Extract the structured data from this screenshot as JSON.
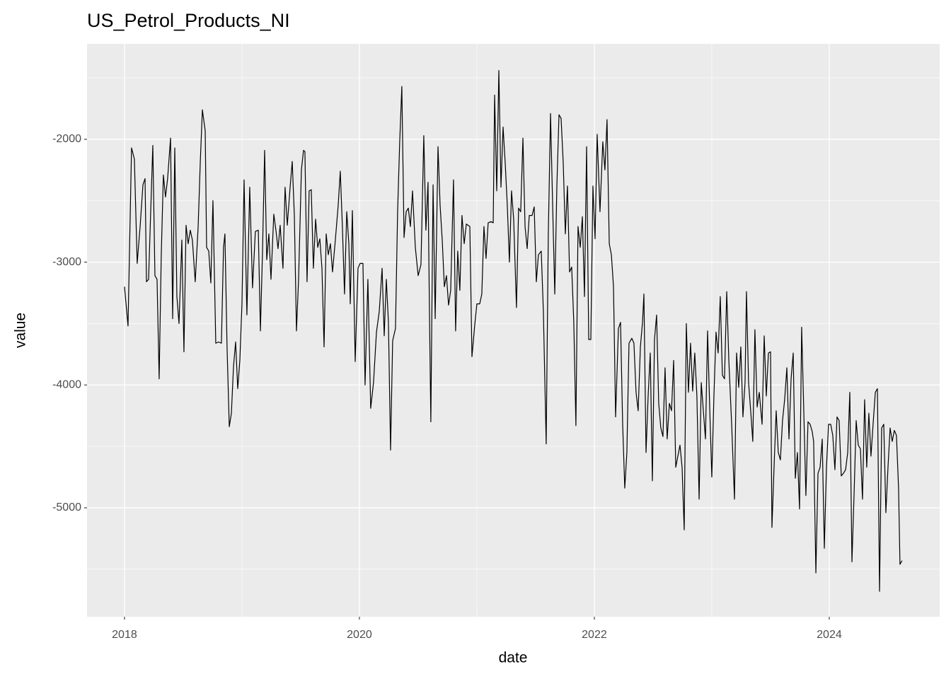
{
  "chart_data": {
    "type": "line",
    "title": "US_Petrol_Products_NI",
    "xlabel": "date",
    "ylabel": "value",
    "color": "#000000",
    "grid": true,
    "xlim": [
      2017.681,
      2024.94
    ],
    "xticks": [
      2018,
      2020,
      2022,
      2024
    ],
    "ylim": [
      -5887,
      -1223
    ],
    "yticks": [
      -5000,
      -4000,
      -3000,
      -2000
    ],
    "x": [
      2018.0,
      2018.03,
      2018.06,
      2018.084,
      2018.108,
      2018.133,
      2018.157,
      2018.175,
      2018.187,
      2018.205,
      2018.223,
      2018.241,
      2018.259,
      2018.277,
      2018.295,
      2018.313,
      2018.331,
      2018.349,
      2018.367,
      2018.392,
      2018.41,
      2018.428,
      2018.446,
      2018.464,
      2018.488,
      2018.506,
      2018.524,
      2018.542,
      2018.56,
      2018.578,
      2018.602,
      2018.627,
      2018.645,
      2018.663,
      2018.687,
      2018.699,
      2018.717,
      2018.735,
      2018.753,
      2018.777,
      2018.801,
      2018.825,
      2018.843,
      2018.855,
      2018.873,
      2018.892,
      2018.91,
      2018.928,
      2018.946,
      2018.964,
      2018.982,
      2019.0,
      2019.018,
      2019.042,
      2019.066,
      2019.09,
      2019.114,
      2019.139,
      2019.157,
      2019.175,
      2019.193,
      2019.211,
      2019.229,
      2019.247,
      2019.271,
      2019.289,
      2019.307,
      2019.325,
      2019.349,
      2019.367,
      2019.386,
      2019.41,
      2019.428,
      2019.446,
      2019.464,
      2019.482,
      2019.506,
      2019.524,
      2019.536,
      2019.554,
      2019.572,
      2019.59,
      2019.608,
      2019.627,
      2019.645,
      2019.663,
      2019.681,
      2019.699,
      2019.717,
      2019.735,
      2019.753,
      2019.771,
      2019.795,
      2019.819,
      2019.837,
      2019.855,
      2019.873,
      2019.892,
      2019.91,
      2019.922,
      2019.94,
      2019.964,
      2019.988,
      2020.006,
      2020.03,
      2020.048,
      2020.072,
      2020.096,
      2020.12,
      2020.145,
      2020.169,
      2020.193,
      2020.211,
      2020.229,
      2020.247,
      2020.265,
      2020.283,
      2020.307,
      2020.325,
      2020.343,
      2020.361,
      2020.38,
      2020.398,
      2020.416,
      2020.434,
      2020.452,
      2020.476,
      2020.5,
      2020.524,
      2020.548,
      2020.566,
      2020.584,
      2020.596,
      2020.608,
      2020.627,
      2020.645,
      2020.669,
      2020.687,
      2020.705,
      2020.723,
      2020.741,
      2020.759,
      2020.777,
      2020.801,
      2020.819,
      2020.837,
      2020.855,
      2020.873,
      2020.892,
      2020.91,
      2020.94,
      2020.958,
      2020.982,
      2021.0,
      2021.024,
      2021.042,
      2021.06,
      2021.078,
      2021.096,
      2021.12,
      2021.139,
      2021.151,
      2021.169,
      2021.187,
      2021.205,
      2021.223,
      2021.241,
      2021.259,
      2021.277,
      2021.295,
      2021.313,
      2021.337,
      2021.355,
      2021.373,
      2021.392,
      2021.41,
      2021.428,
      2021.446,
      2021.47,
      2021.488,
      2021.506,
      2021.524,
      2021.548,
      2021.566,
      2021.59,
      2021.608,
      2021.627,
      2021.645,
      2021.663,
      2021.681,
      2021.699,
      2021.717,
      2021.735,
      2021.753,
      2021.771,
      2021.789,
      2021.807,
      2021.825,
      2021.843,
      2021.861,
      2021.88,
      2021.898,
      2021.916,
      2021.934,
      2021.952,
      2021.97,
      2021.988,
      2022.006,
      2022.024,
      2022.048,
      2022.072,
      2022.09,
      2022.108,
      2022.127,
      2022.145,
      2022.163,
      2022.181,
      2022.205,
      2022.223,
      2022.241,
      2022.259,
      2022.277,
      2022.295,
      2022.319,
      2022.337,
      2022.355,
      2022.373,
      2022.392,
      2022.41,
      2022.422,
      2022.44,
      2022.458,
      2022.476,
      2022.494,
      2022.512,
      2022.53,
      2022.548,
      2022.566,
      2022.584,
      2022.602,
      2022.62,
      2022.639,
      2022.657,
      2022.675,
      2022.693,
      2022.711,
      2022.729,
      2022.747,
      2022.765,
      2022.783,
      2022.801,
      2022.819,
      2022.837,
      2022.855,
      2022.873,
      2022.892,
      2022.91,
      2022.928,
      2022.946,
      2022.964,
      2022.982,
      2023.0,
      2023.018,
      2023.036,
      2023.054,
      2023.072,
      2023.09,
      2023.108,
      2023.127,
      2023.145,
      2023.169,
      2023.193,
      2023.211,
      2023.229,
      2023.247,
      2023.265,
      2023.283,
      2023.295,
      2023.313,
      2023.331,
      2023.349,
      2023.367,
      2023.386,
      2023.404,
      2023.428,
      2023.446,
      2023.464,
      2023.482,
      2023.5,
      2023.512,
      2023.53,
      2023.548,
      2023.566,
      2023.584,
      2023.602,
      2023.62,
      2023.639,
      2023.657,
      2023.675,
      2023.693,
      2023.711,
      2023.729,
      2023.747,
      2023.765,
      2023.783,
      2023.801,
      2023.819,
      2023.837,
      2023.855,
      2023.867,
      2023.886,
      2023.904,
      2023.922,
      2023.94,
      2023.958,
      2023.976,
      2023.994,
      2024.012,
      2024.03,
      2024.048,
      2024.066,
      2024.084,
      2024.102,
      2024.12,
      2024.139,
      2024.157,
      2024.175,
      2024.193,
      2024.211,
      2024.229,
      2024.247,
      2024.265,
      2024.283,
      2024.301,
      2024.319,
      2024.337,
      2024.355,
      2024.373,
      2024.392,
      2024.41,
      2024.428,
      2024.446,
      2024.464,
      2024.482,
      2024.5,
      2024.518,
      2024.536,
      2024.554,
      2024.572,
      2024.59,
      2024.602,
      2024.62
    ],
    "values": [
      -3200,
      -3520,
      -2070,
      -2160,
      -3010,
      -2710,
      -2370,
      -2320,
      -3160,
      -3140,
      -2590,
      -2050,
      -3110,
      -3140,
      -3950,
      -2940,
      -2290,
      -2470,
      -2320,
      -1990,
      -3460,
      -2070,
      -3280,
      -3500,
      -2820,
      -3730,
      -2700,
      -2850,
      -2740,
      -2820,
      -3160,
      -2710,
      -2190,
      -1760,
      -1930,
      -2880,
      -2910,
      -3170,
      -2500,
      -3660,
      -3650,
      -3660,
      -2880,
      -2770,
      -3690,
      -4340,
      -4230,
      -3850,
      -3650,
      -4030,
      -3800,
      -3340,
      -2330,
      -3430,
      -2390,
      -3210,
      -2750,
      -2740,
      -3560,
      -2910,
      -2090,
      -2980,
      -2770,
      -3140,
      -2610,
      -2740,
      -2890,
      -2700,
      -3050,
      -2390,
      -2700,
      -2390,
      -2180,
      -2620,
      -3560,
      -3140,
      -2250,
      -2090,
      -2100,
      -3160,
      -2420,
      -2410,
      -3050,
      -2650,
      -2880,
      -2810,
      -3050,
      -3690,
      -2770,
      -2940,
      -2850,
      -3080,
      -2820,
      -2540,
      -2260,
      -2710,
      -3260,
      -2590,
      -2850,
      -3340,
      -2580,
      -3810,
      -3050,
      -3010,
      -3010,
      -4000,
      -3140,
      -4190,
      -3980,
      -3570,
      -3400,
      -3050,
      -3600,
      -3140,
      -3490,
      -4530,
      -3640,
      -3540,
      -2590,
      -2020,
      -1570,
      -2800,
      -2590,
      -2560,
      -2710,
      -2420,
      -2880,
      -3110,
      -3020,
      -1970,
      -2740,
      -2350,
      -3390,
      -4300,
      -2370,
      -3460,
      -2060,
      -2540,
      -2820,
      -3200,
      -3110,
      -3350,
      -3230,
      -2330,
      -3560,
      -2910,
      -3230,
      -2620,
      -2850,
      -2690,
      -2710,
      -3770,
      -3510,
      -3340,
      -3340,
      -3260,
      -2710,
      -2970,
      -2680,
      -2670,
      -2680,
      -1640,
      -2420,
      -1440,
      -2390,
      -1900,
      -2190,
      -2540,
      -3000,
      -2420,
      -2650,
      -3370,
      -2560,
      -2590,
      -1990,
      -2710,
      -2890,
      -2620,
      -2620,
      -2550,
      -3160,
      -2940,
      -2910,
      -3400,
      -4480,
      -2770,
      -1790,
      -2540,
      -3260,
      -2380,
      -1800,
      -1830,
      -2190,
      -2770,
      -2380,
      -3080,
      -3040,
      -3490,
      -4330,
      -2710,
      -2880,
      -2630,
      -3280,
      -2060,
      -3630,
      -3630,
      -2380,
      -2810,
      -1960,
      -2590,
      -2020,
      -2250,
      -1840,
      -2850,
      -2940,
      -3200,
      -4260,
      -3540,
      -3490,
      -4320,
      -4840,
      -4550,
      -3660,
      -3620,
      -3660,
      -4060,
      -4210,
      -3690,
      -3490,
      -3260,
      -4550,
      -4090,
      -3740,
      -4780,
      -3630,
      -3430,
      -4150,
      -4350,
      -4420,
      -3860,
      -4440,
      -4150,
      -4210,
      -3800,
      -4670,
      -4580,
      -4490,
      -4670,
      -5180,
      -3500,
      -4060,
      -3660,
      -4050,
      -3740,
      -4090,
      -4930,
      -3980,
      -4210,
      -4440,
      -3560,
      -4180,
      -4750,
      -4090,
      -3570,
      -3740,
      -3280,
      -3920,
      -3950,
      -3240,
      -3800,
      -4320,
      -4930,
      -3740,
      -4020,
      -3690,
      -4260,
      -3980,
      -3240,
      -3980,
      -4210,
      -4460,
      -3550,
      -4180,
      -4060,
      -4320,
      -3600,
      -4090,
      -3740,
      -3730,
      -5160,
      -4670,
      -4210,
      -4550,
      -4610,
      -4290,
      -4120,
      -3860,
      -4440,
      -3950,
      -3740,
      -4760,
      -4550,
      -5010,
      -3530,
      -4210,
      -4900,
      -4300,
      -4320,
      -4380,
      -4460,
      -5530,
      -4720,
      -4670,
      -4440,
      -5330,
      -4670,
      -4320,
      -4320,
      -4410,
      -4690,
      -4260,
      -4290,
      -4740,
      -4720,
      -4690,
      -4550,
      -4060,
      -5440,
      -4900,
      -4290,
      -4490,
      -4520,
      -4930,
      -4120,
      -4670,
      -4230,
      -4580,
      -4320,
      -4060,
      -4030,
      -5680,
      -4350,
      -4320,
      -5040,
      -4670,
      -4350,
      -4460,
      -4370,
      -4410,
      -4840,
      -5460,
      -5430
    ]
  }
}
